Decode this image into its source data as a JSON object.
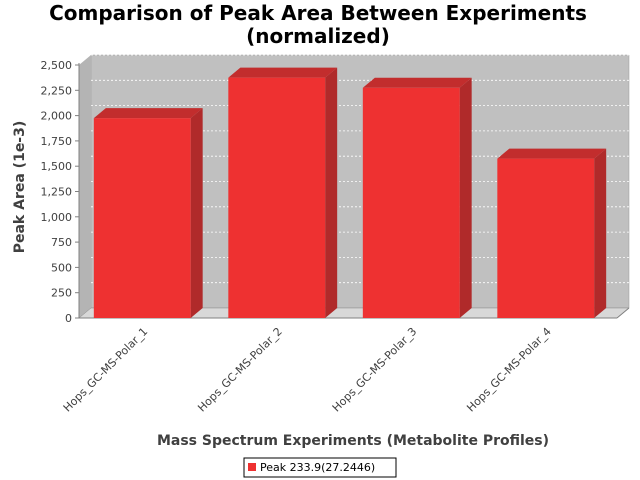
{
  "chart_data": {
    "type": "bar",
    "title_line1": "Comparison of Peak Area Between Experiments",
    "title_line2": "(normalized)",
    "xlabel": "Mass Spectrum Experiments (Metabolite Profiles)",
    "ylabel": "Peak Area (1e-3)",
    "categories": [
      "Hops_GC-MS-Polar_1",
      "Hops_GC-MS-Polar_2",
      "Hops_GC-MS-Polar_3",
      "Hops_GC-MS-Polar_4"
    ],
    "series": [
      {
        "name": "Peak 233.9(27.2446)",
        "values": [
          1975,
          2375,
          2275,
          1575
        ]
      }
    ],
    "ylim": [
      0,
      2500
    ],
    "yticks": [
      0,
      250,
      500,
      750,
      1000,
      1250,
      1500,
      1750,
      2000,
      2250,
      2500
    ],
    "ytick_labels": [
      "0",
      "250",
      "500",
      "750",
      "1,000",
      "1,250",
      "1,500",
      "1,750",
      "2,000",
      "2,250",
      "2,500"
    ],
    "grid": true,
    "legend_position": "bottom",
    "colors": {
      "bar_front": "#ee3131",
      "bar_side": "#b02a2a",
      "bar_top": "#c22d2d",
      "plot_background": "#c0c0c0",
      "plot_floor": "#d8d8d8",
      "gridline": "#ffffff",
      "text": "#404040"
    }
  }
}
